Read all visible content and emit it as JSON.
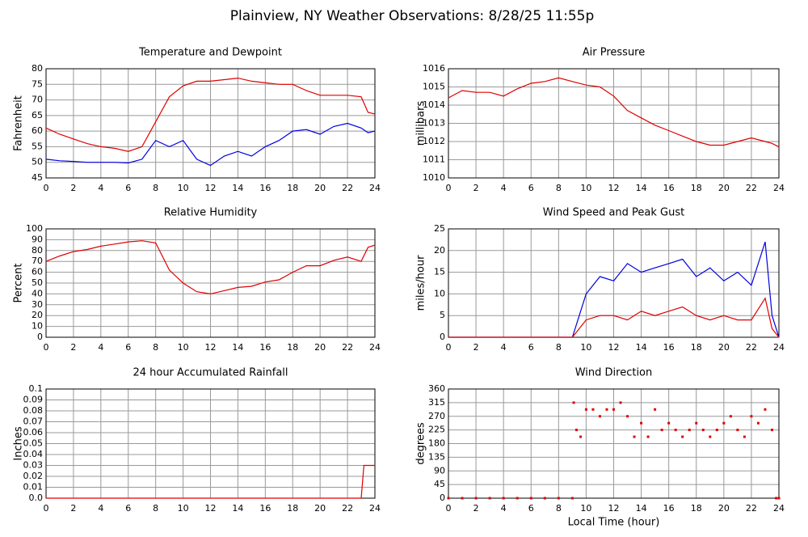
{
  "title": "Plainview, NY Weather Observations: 8/28/25 11:55p",
  "chart_data": [
    {
      "type": "line",
      "title": "Temperature and Dewpoint",
      "ylabel": "Fahrenheit",
      "x": [
        0,
        1,
        2,
        3,
        4,
        5,
        6,
        7,
        8,
        9,
        10,
        11,
        12,
        13,
        14,
        15,
        16,
        17,
        18,
        19,
        20,
        21,
        22,
        23,
        23.5,
        24
      ],
      "series": [
        {
          "color": "#e00000",
          "values": [
            61,
            59,
            57.5,
            56,
            55,
            54.5,
            53.5,
            55,
            63,
            71,
            74.5,
            76,
            76,
            76.5,
            77,
            76,
            75.5,
            75,
            75,
            73,
            71.5,
            71.5,
            71.5,
            71,
            66,
            65.5
          ]
        },
        {
          "color": "#0000e0",
          "values": [
            51,
            50.5,
            50.3,
            50,
            50,
            50,
            49.8,
            51,
            57,
            55,
            57,
            51,
            49,
            52,
            53.5,
            52,
            55,
            57,
            60,
            60.5,
            59,
            61.5,
            62.5,
            61,
            59.5,
            60
          ]
        }
      ],
      "xlim": [
        0,
        24
      ],
      "xticks": [
        0,
        2,
        4,
        6,
        8,
        10,
        12,
        14,
        16,
        18,
        20,
        22,
        24
      ],
      "ylim": [
        45,
        80
      ],
      "yticks": [
        45,
        50,
        55,
        60,
        65,
        70,
        75,
        80
      ],
      "grid": true
    },
    {
      "type": "line",
      "title": "Air Pressure",
      "ylabel": "millibars",
      "x": [
        0,
        1,
        2,
        3,
        4,
        5,
        6,
        7,
        8,
        9,
        10,
        11,
        12,
        13,
        14,
        15,
        16,
        17,
        18,
        19,
        20,
        21,
        22,
        23,
        23.5,
        24
      ],
      "series": [
        {
          "color": "#e00000",
          "values": [
            1014.4,
            1014.8,
            1014.7,
            1014.7,
            1014.5,
            1014.9,
            1015.2,
            1015.3,
            1015.5,
            1015.3,
            1015.1,
            1015.0,
            1014.5,
            1013.7,
            1013.3,
            1012.9,
            1012.6,
            1012.3,
            1012.0,
            1011.8,
            1011.8,
            1012.0,
            1012.2,
            1012.0,
            1011.9,
            1011.7
          ]
        }
      ],
      "xlim": [
        0,
        24
      ],
      "xticks": [
        0,
        2,
        4,
        6,
        8,
        10,
        12,
        14,
        16,
        18,
        20,
        22,
        24
      ],
      "ylim": [
        1010,
        1016
      ],
      "yticks": [
        1010,
        1011,
        1012,
        1013,
        1014,
        1015,
        1016
      ],
      "grid": true
    },
    {
      "type": "line",
      "title": "Relative Humidity",
      "ylabel": "Percent",
      "x": [
        0,
        1,
        2,
        3,
        4,
        5,
        6,
        7,
        8,
        9,
        10,
        11,
        12,
        13,
        14,
        15,
        16,
        17,
        18,
        19,
        20,
        21,
        22,
        23,
        23.5,
        24
      ],
      "series": [
        {
          "color": "#e00000",
          "values": [
            70,
            75,
            79,
            81,
            84,
            86,
            88,
            89,
            87,
            62,
            50,
            42,
            40,
            43,
            46,
            47,
            51,
            53,
            60,
            66,
            66,
            71,
            74,
            70,
            83,
            85
          ]
        }
      ],
      "xlim": [
        0,
        24
      ],
      "xticks": [
        0,
        2,
        4,
        6,
        8,
        10,
        12,
        14,
        16,
        18,
        20,
        22,
        24
      ],
      "ylim": [
        0,
        100
      ],
      "yticks": [
        0,
        10,
        20,
        30,
        40,
        50,
        60,
        70,
        80,
        90,
        100
      ],
      "grid": true
    },
    {
      "type": "line",
      "title": "Wind Speed and Peak Gust",
      "ylabel": "miles/hour",
      "x": [
        0,
        1,
        2,
        3,
        4,
        5,
        6,
        7,
        8,
        9,
        10,
        11,
        12,
        13,
        14,
        15,
        16,
        17,
        18,
        19,
        20,
        21,
        22,
        23,
        23.5,
        24
      ],
      "series": [
        {
          "color": "#0000e0",
          "values": [
            0,
            0,
            0,
            0,
            0,
            0,
            0,
            0,
            0,
            0,
            10,
            14,
            13,
            17,
            15,
            16,
            17,
            18,
            14,
            16,
            13,
            15,
            12,
            22,
            5,
            0
          ]
        },
        {
          "color": "#e00000",
          "values": [
            0,
            0,
            0,
            0,
            0,
            0,
            0,
            0,
            0,
            0,
            4,
            5,
            5,
            4,
            6,
            5,
            6,
            7,
            5,
            4,
            5,
            4,
            4,
            9,
            2,
            0
          ]
        }
      ],
      "xlim": [
        0,
        24
      ],
      "xticks": [
        0,
        2,
        4,
        6,
        8,
        10,
        12,
        14,
        16,
        18,
        20,
        22,
        24
      ],
      "ylim": [
        0,
        25
      ],
      "yticks": [
        0,
        5,
        10,
        15,
        20,
        25
      ],
      "grid": true
    },
    {
      "type": "line",
      "title": "24 hour Accumulated Rainfall",
      "ylabel": "Inches",
      "x": [
        0,
        23,
        23.2,
        24
      ],
      "series": [
        {
          "color": "#e00000",
          "values": [
            0,
            0,
            0.03,
            0.03
          ]
        }
      ],
      "xlim": [
        0,
        24
      ],
      "xticks": [
        0,
        2,
        4,
        6,
        8,
        10,
        12,
        14,
        16,
        18,
        20,
        22,
        24
      ],
      "ylim": [
        0,
        0.1
      ],
      "yticks": [
        {
          "value": 0,
          "label": "0.0"
        },
        0.01,
        0.02,
        0.03,
        0.04,
        0.05,
        0.06,
        0.07,
        0.08,
        0.09,
        {
          "value": 0.1,
          "label": "0.1"
        }
      ],
      "grid": true
    },
    {
      "type": "scatter",
      "title": "Wind Direction",
      "ylabel": "degrees",
      "xlabel": "Local Time (hour)",
      "color": "#e00000",
      "x": [
        0,
        1,
        2,
        3,
        4,
        5,
        6,
        7,
        8,
        9,
        9.1,
        9.3,
        9.6,
        10,
        10.5,
        11,
        11.5,
        12,
        12.5,
        13,
        13.5,
        14,
        14.5,
        15,
        15.5,
        16,
        16.5,
        17,
        17.5,
        18,
        18.5,
        19,
        19.5,
        20,
        20.5,
        21,
        21.5,
        22,
        22.5,
        23,
        23.5,
        23.8,
        24
      ],
      "values": [
        0,
        0,
        0,
        0,
        0,
        0,
        0,
        0,
        0,
        0,
        315,
        225,
        202.5,
        292.5,
        292.5,
        270,
        292.5,
        292.5,
        315,
        270,
        202.5,
        247.5,
        202.5,
        292.5,
        225,
        247.5,
        225,
        202.5,
        225,
        247.5,
        225,
        202.5,
        225,
        247.5,
        270,
        225,
        202.5,
        270,
        247.5,
        292.5,
        225,
        0,
        0
      ],
      "xlim": [
        0,
        24
      ],
      "xticks": [
        0,
        2,
        4,
        6,
        8,
        10,
        12,
        14,
        16,
        18,
        20,
        22,
        24
      ],
      "ylim": [
        0,
        360
      ],
      "yticks": [
        0,
        45,
        90,
        135,
        180,
        225,
        270,
        315,
        360
      ],
      "grid": true
    }
  ]
}
